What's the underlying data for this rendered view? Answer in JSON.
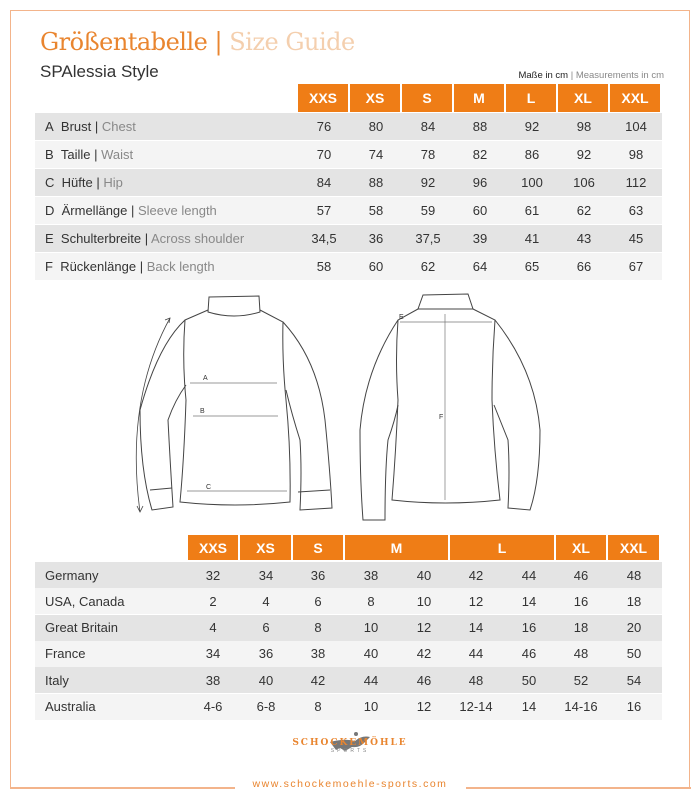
{
  "title": {
    "de": "Größentabelle",
    "sep": "|",
    "en": "Size Guide"
  },
  "subtitle": "SPAlessia Style",
  "units": {
    "de": "Maße in cm",
    "sep": "|",
    "en": "Measurements in cm"
  },
  "accent": "#ef7d16",
  "measure_table": {
    "sizes": [
      "XXS",
      "XS",
      "S",
      "M",
      "L",
      "XL",
      "XXL"
    ],
    "rows": [
      {
        "letter": "A",
        "de": "Brust",
        "en": "Chest",
        "values": [
          "76",
          "80",
          "84",
          "88",
          "92",
          "98",
          "104"
        ]
      },
      {
        "letter": "B",
        "de": "Taille",
        "en": "Waist",
        "values": [
          "70",
          "74",
          "78",
          "82",
          "86",
          "92",
          "98"
        ]
      },
      {
        "letter": "C",
        "de": "Hüfte",
        "en": "Hip",
        "values": [
          "84",
          "88",
          "92",
          "96",
          "100",
          "106",
          "112"
        ]
      },
      {
        "letter": "D",
        "de": "Ärmellänge",
        "en": "Sleeve length",
        "values": [
          "57",
          "58",
          "59",
          "60",
          "61",
          "62",
          "63"
        ]
      },
      {
        "letter": "E",
        "de": "Schulterbreite",
        "en": "Across shoulder",
        "values": [
          "34,5",
          "36",
          "37,5",
          "39",
          "41",
          "43",
          "45"
        ]
      },
      {
        "letter": "F",
        "de": "Rückenlänge",
        "en": "Back length",
        "values": [
          "58",
          "60",
          "62",
          "64",
          "65",
          "66",
          "67"
        ]
      }
    ]
  },
  "diagram_labels": {
    "a": "A",
    "b": "B",
    "c": "C",
    "e": "E",
    "f": "F"
  },
  "conversion_table": {
    "sizes": [
      "XXS",
      "XS",
      "S",
      "M",
      "L",
      "XL",
      "XXL"
    ],
    "rows": [
      {
        "country": "Germany",
        "values": [
          "32",
          "34",
          "36",
          "38",
          "40",
          "42",
          "44",
          "46",
          "48"
        ]
      },
      {
        "country": "USA, Canada",
        "values": [
          "2",
          "4",
          "6",
          "8",
          "10",
          "12",
          "14",
          "16",
          "18"
        ]
      },
      {
        "country": "Great Britain",
        "values": [
          "4",
          "6",
          "8",
          "10",
          "12",
          "14",
          "16",
          "18",
          "20"
        ]
      },
      {
        "country": "France",
        "values": [
          "34",
          "36",
          "38",
          "40",
          "42",
          "44",
          "46",
          "48",
          "50"
        ]
      },
      {
        "country": "Italy",
        "values": [
          "38",
          "40",
          "42",
          "44",
          "46",
          "48",
          "50",
          "52",
          "54"
        ]
      },
      {
        "country": "Australia",
        "values": [
          "4-6",
          "6-8",
          "8",
          "10",
          "12",
          "12-14",
          "14",
          "14-16",
          "16"
        ]
      }
    ]
  },
  "logo": {
    "brand": "SCHOCKEMÖHLE",
    "sub": "SPORTS"
  },
  "url": "www.schockemoehle-sports.com"
}
